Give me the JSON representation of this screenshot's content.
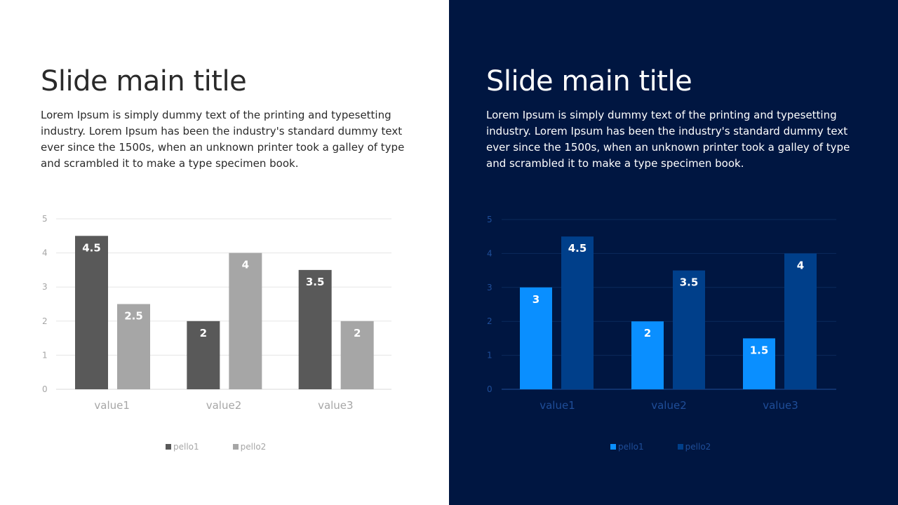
{
  "left_slide": {
    "title": "Slide main title",
    "body": "Lorem Ipsum is simply dummy text of the printing and typesetting industry. Lorem Ipsum has been the industry's standard dummy text ever since the 1500s, when an unknown printer took a galley of type and scrambled it to make a type specimen book.",
    "colors": {
      "background": "#ffffff",
      "text": "#2a2a2a",
      "series1": "#595959",
      "series2": "#a6a6a6",
      "grid": "#e6e6e6",
      "axis_text": "#a6a6a6",
      "data_label": "#ffffff"
    }
  },
  "right_slide": {
    "title": "Slide main title",
    "body": "Lorem Ipsum is simply dummy text of the printing and typesetting industry. Lorem Ipsum has been the industry's standard dummy text ever since the 1500s, when an unknown printer took a galley of type and scrambled it to make a type specimen book.",
    "colors": {
      "background": "#001641",
      "text": "#ffffff",
      "series1": "#0a8fff",
      "series2": "#003f8a",
      "grid": "#0b2a5c",
      "axis_text": "#1f4e99",
      "data_label": "#ffffff"
    }
  },
  "chart_data": [
    {
      "type": "bar",
      "categories": [
        "value1",
        "value2",
        "value3"
      ],
      "series": [
        {
          "name": "pello1",
          "values": [
            4.5,
            2,
            3.5
          ]
        },
        {
          "name": "pello2",
          "values": [
            2.5,
            4,
            2
          ]
        }
      ],
      "ylim": [
        0,
        5
      ],
      "yticks": [
        0,
        1,
        2,
        3,
        4,
        5
      ],
      "grid": true,
      "legend": "bottom-center",
      "data_labels": true
    },
    {
      "type": "bar",
      "categories": [
        "value1",
        "value2",
        "value3"
      ],
      "series": [
        {
          "name": "pello1",
          "values": [
            3,
            2,
            1.5
          ]
        },
        {
          "name": "pello2",
          "values": [
            4.5,
            3.5,
            4
          ]
        }
      ],
      "ylim": [
        0,
        5
      ],
      "yticks": [
        0,
        1,
        2,
        3,
        4,
        5
      ],
      "grid": true,
      "legend": "bottom-center",
      "data_labels": true
    }
  ]
}
